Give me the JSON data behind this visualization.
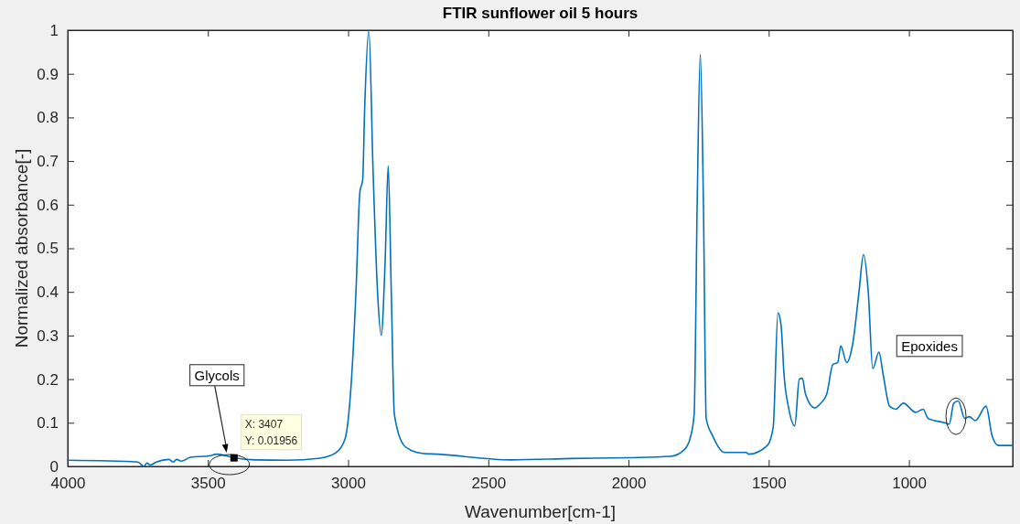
{
  "chart_data": {
    "type": "line",
    "title": "FTIR sunflower oil 5 hours",
    "xlabel": "Wavenumber[cm-1]",
    "ylabel": "Normalized absorbance[-]",
    "xlim": [
      4000,
      630
    ],
    "xticks": [
      4000,
      3500,
      3000,
      2500,
      2000,
      1500,
      1000
    ],
    "ylim": [
      0,
      1
    ],
    "yticks": [
      0,
      0.1,
      0.2,
      0.3,
      0.4,
      0.5,
      0.6,
      0.7,
      0.8,
      0.9,
      1
    ],
    "grid": false,
    "marker": "none",
    "line_style": "solid",
    "series": [
      {
        "color": "#0072bd",
        "x": [
          4000,
          3750,
          3728,
          3717,
          3706,
          3684,
          3639,
          3623,
          3612,
          3595,
          3562,
          3496,
          3469,
          3407,
          3331,
          3220,
          3099,
          3044,
          3011,
          2989,
          2972,
          2958,
          2948,
          2941,
          2926,
          2911,
          2895,
          2882,
          2868,
          2857,
          2846,
          2835,
          2802,
          2769,
          2736,
          2680,
          2418,
          2200,
          2000,
          1850,
          1800,
          1780,
          1766,
          1755,
          1744,
          1733,
          1723,
          1700,
          1658,
          1581,
          1571,
          1505,
          1484,
          1467,
          1456,
          1445,
          1429,
          1407,
          1391,
          1380,
          1369,
          1336,
          1314,
          1293,
          1271,
          1254,
          1243,
          1222,
          1200,
          1178,
          1162,
          1145,
          1129,
          1107,
          1091,
          1069,
          1047,
          1020,
          976,
          949,
          932,
          872,
          856,
          840,
          824,
          801,
          785,
          763,
          725,
          703,
          681,
          630
        ],
        "values": [
          0.014,
          0.01,
          0.0,
          0.008,
          0.003,
          0.01,
          0.016,
          0.01,
          0.016,
          0.012,
          0.021,
          0.024,
          0.028,
          0.02,
          0.015,
          0.014,
          0.019,
          0.031,
          0.063,
          0.189,
          0.399,
          0.629,
          0.657,
          0.818,
          1.0,
          0.678,
          0.399,
          0.301,
          0.469,
          0.689,
          0.399,
          0.119,
          0.049,
          0.035,
          0.03,
          0.028,
          0.015,
          0.018,
          0.02,
          0.023,
          0.039,
          0.065,
          0.119,
          0.608,
          0.945,
          0.608,
          0.11,
          0.07,
          0.032,
          0.032,
          0.028,
          0.048,
          0.09,
          0.352,
          0.324,
          0.207,
          0.134,
          0.093,
          0.2,
          0.202,
          0.166,
          0.134,
          0.145,
          0.166,
          0.234,
          0.238,
          0.276,
          0.238,
          0.283,
          0.4,
          0.486,
          0.4,
          0.224,
          0.262,
          0.207,
          0.138,
          0.131,
          0.145,
          0.124,
          0.131,
          0.11,
          0.1,
          0.097,
          0.145,
          0.15,
          0.11,
          0.114,
          0.105,
          0.138,
          0.069,
          0.048,
          0.048
        ]
      }
    ],
    "annotations": [
      "Glycols",
      {
        "text": "X: 3407\nY: 0.01956",
        "x": 3407,
        "y": 0.01956
      },
      "Epoxides"
    ]
  }
}
